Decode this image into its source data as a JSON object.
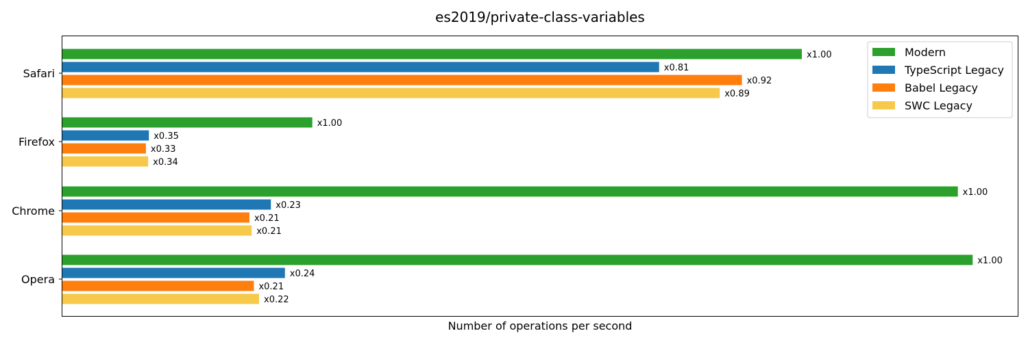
{
  "chart_data": {
    "type": "bar",
    "orientation": "horizontal",
    "title": "es2019/private-class-variables",
    "xlabel": "Number of operations per second",
    "ylabel": "",
    "categories": [
      "Safari",
      "Firefox",
      "Chrome",
      "Opera"
    ],
    "series": [
      {
        "name": "Modern",
        "color": "#2ca02c",
        "values": [
          1.0,
          1.0,
          1.0,
          1.0
        ],
        "labels": [
          "x1.00",
          "x1.00",
          "x1.00",
          "x1.00"
        ]
      },
      {
        "name": "TypeScript Legacy",
        "color": "#1f77b4",
        "values": [
          0.81,
          0.35,
          0.23,
          0.24
        ],
        "labels": [
          "x0.81",
          "x0.35",
          "x0.23",
          "x0.24"
        ]
      },
      {
        "name": "Babel Legacy",
        "color": "#ff7f0e",
        "values": [
          0.92,
          0.33,
          0.21,
          0.21
        ],
        "labels": [
          "x0.92",
          "x0.33",
          "x0.21",
          "x0.21"
        ]
      },
      {
        "name": "SWC Legacy",
        "color": "#f7c94b",
        "values": [
          0.89,
          0.34,
          0.21,
          0.22
        ],
        "labels": [
          "x0.89",
          "x0.34",
          "x0.21",
          "x0.22"
        ]
      }
    ],
    "relative_bar_length": {
      "Safari": [
        1.0,
        0.807,
        0.919,
        0.889
      ],
      "Firefox": [
        0.338,
        0.117,
        0.113,
        0.116
      ],
      "Chrome": [
        1.211,
        0.282,
        0.253,
        0.256
      ],
      "Opera": [
        1.231,
        0.301,
        0.259,
        0.266
      ]
    },
    "legend_position": "top-right",
    "grid": false,
    "x_ticks": false
  }
}
